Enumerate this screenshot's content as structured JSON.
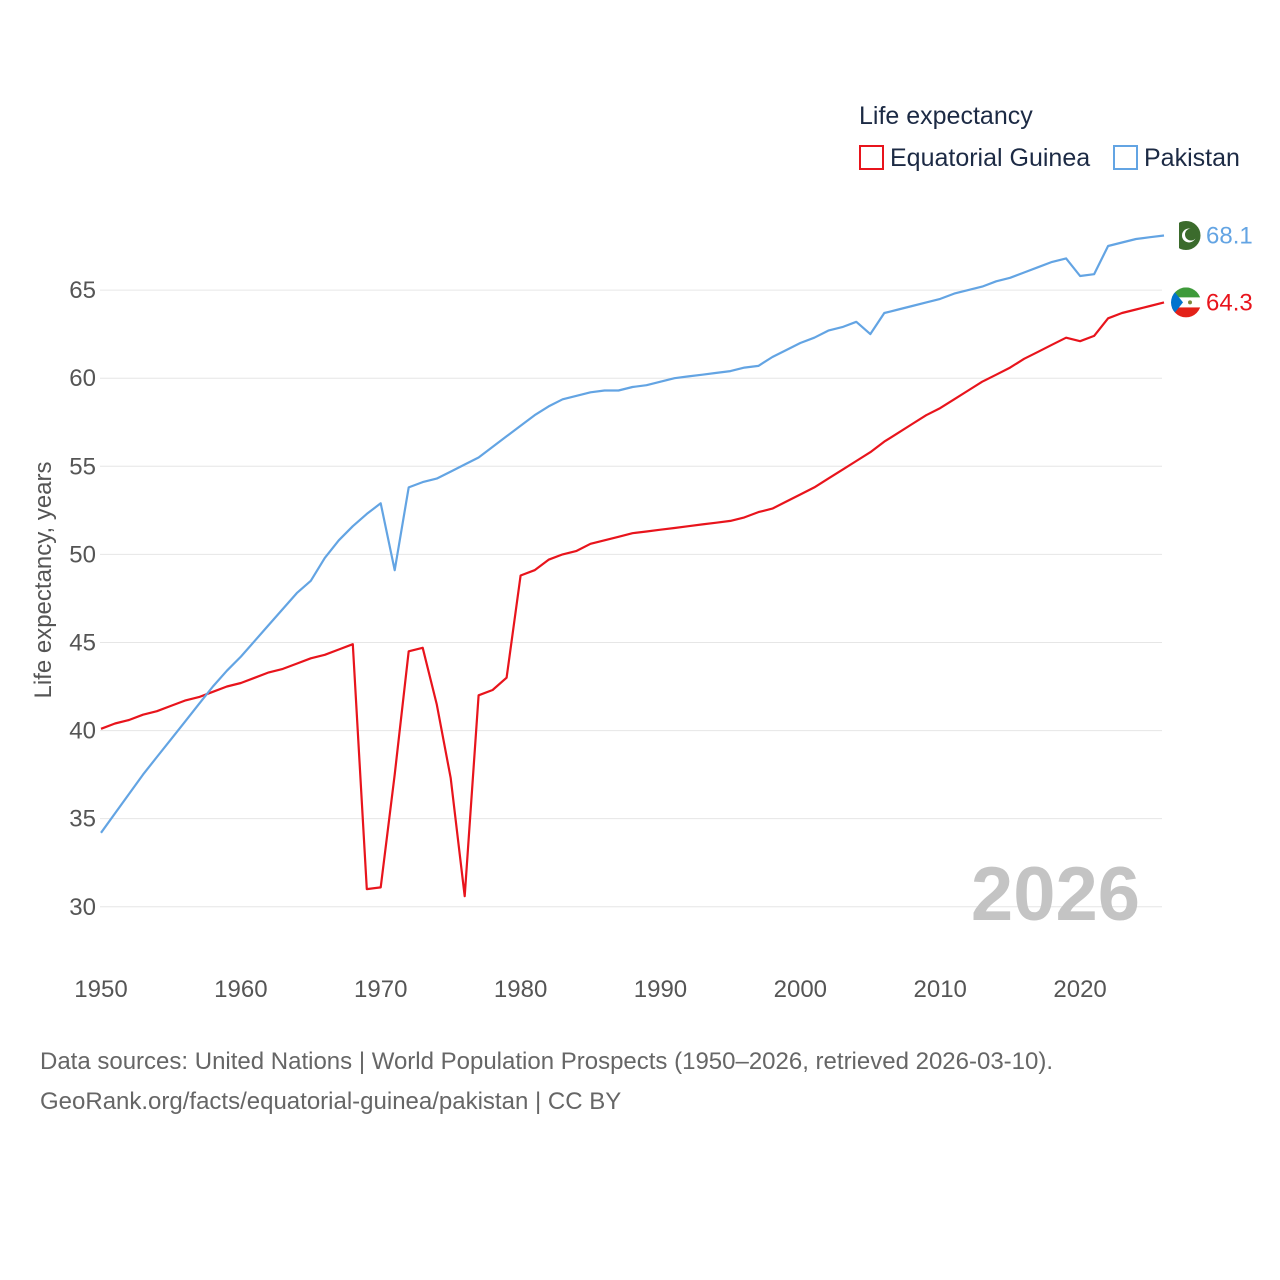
{
  "chart_data": {
    "type": "line",
    "legend_title": "Life expectancy",
    "ylabel": "Life expectancy, years",
    "xlabel": "",
    "xlim": [
      1950,
      2026
    ],
    "ylim": [
      28,
      70
    ],
    "x_ticks": [
      1950,
      1960,
      1970,
      1980,
      1990,
      2000,
      2010,
      2020
    ],
    "y_ticks": [
      30,
      35,
      40,
      45,
      50,
      55,
      60,
      65
    ],
    "year_watermark": "2026",
    "legend_placement": "top-right",
    "series": [
      {
        "name": "Equatorial Guinea",
        "color": "#e8141c",
        "end_label": "64.3",
        "points": [
          [
            1950,
            40.1
          ],
          [
            1951,
            40.4
          ],
          [
            1952,
            40.6
          ],
          [
            1953,
            40.9
          ],
          [
            1954,
            41.1
          ],
          [
            1955,
            41.4
          ],
          [
            1956,
            41.7
          ],
          [
            1957,
            41.9
          ],
          [
            1958,
            42.2
          ],
          [
            1959,
            42.5
          ],
          [
            1960,
            42.7
          ],
          [
            1961,
            43.0
          ],
          [
            1962,
            43.3
          ],
          [
            1963,
            43.5
          ],
          [
            1964,
            43.8
          ],
          [
            1965,
            44.1
          ],
          [
            1966,
            44.3
          ],
          [
            1967,
            44.6
          ],
          [
            1968,
            44.9
          ],
          [
            1969,
            31.0
          ],
          [
            1970,
            31.1
          ],
          [
            1971,
            37.5
          ],
          [
            1972,
            44.5
          ],
          [
            1973,
            44.7
          ],
          [
            1974,
            41.5
          ],
          [
            1975,
            37.3
          ],
          [
            1976,
            30.6
          ],
          [
            1977,
            42.0
          ],
          [
            1978,
            42.3
          ],
          [
            1979,
            43.0
          ],
          [
            1980,
            48.8
          ],
          [
            1981,
            49.1
          ],
          [
            1982,
            49.7
          ],
          [
            1983,
            50.0
          ],
          [
            1984,
            50.2
          ],
          [
            1985,
            50.6
          ],
          [
            1986,
            50.8
          ],
          [
            1987,
            51.0
          ],
          [
            1988,
            51.2
          ],
          [
            1989,
            51.3
          ],
          [
            1990,
            51.4
          ],
          [
            1991,
            51.5
          ],
          [
            1992,
            51.6
          ],
          [
            1993,
            51.7
          ],
          [
            1994,
            51.8
          ],
          [
            1995,
            51.9
          ],
          [
            1996,
            52.1
          ],
          [
            1997,
            52.4
          ],
          [
            1998,
            52.6
          ],
          [
            1999,
            53.0
          ],
          [
            2000,
            53.4
          ],
          [
            2001,
            53.8
          ],
          [
            2002,
            54.3
          ],
          [
            2003,
            54.8
          ],
          [
            2004,
            55.3
          ],
          [
            2005,
            55.8
          ],
          [
            2006,
            56.4
          ],
          [
            2007,
            56.9
          ],
          [
            2008,
            57.4
          ],
          [
            2009,
            57.9
          ],
          [
            2010,
            58.3
          ],
          [
            2011,
            58.8
          ],
          [
            2012,
            59.3
          ],
          [
            2013,
            59.8
          ],
          [
            2014,
            60.2
          ],
          [
            2015,
            60.6
          ],
          [
            2016,
            61.1
          ],
          [
            2017,
            61.5
          ],
          [
            2018,
            61.9
          ],
          [
            2019,
            62.3
          ],
          [
            2020,
            62.1
          ],
          [
            2021,
            62.4
          ],
          [
            2022,
            63.4
          ],
          [
            2023,
            63.7
          ],
          [
            2024,
            63.9
          ],
          [
            2025,
            64.1
          ],
          [
            2026,
            64.3
          ]
        ]
      },
      {
        "name": "Pakistan",
        "color": "#63a4e3",
        "end_label": "68.1",
        "points": [
          [
            1950,
            34.2
          ],
          [
            1951,
            35.3
          ],
          [
            1952,
            36.4
          ],
          [
            1953,
            37.5
          ],
          [
            1954,
            38.5
          ],
          [
            1955,
            39.5
          ],
          [
            1956,
            40.5
          ],
          [
            1957,
            41.5
          ],
          [
            1958,
            42.5
          ],
          [
            1959,
            43.4
          ],
          [
            1960,
            44.2
          ],
          [
            1961,
            45.1
          ],
          [
            1962,
            46.0
          ],
          [
            1963,
            46.9
          ],
          [
            1964,
            47.8
          ],
          [
            1965,
            48.5
          ],
          [
            1966,
            49.8
          ],
          [
            1967,
            50.8
          ],
          [
            1968,
            51.6
          ],
          [
            1969,
            52.3
          ],
          [
            1970,
            52.9
          ],
          [
            1971,
            49.1
          ],
          [
            1972,
            53.8
          ],
          [
            1973,
            54.1
          ],
          [
            1974,
            54.3
          ],
          [
            1975,
            54.7
          ],
          [
            1976,
            55.1
          ],
          [
            1977,
            55.5
          ],
          [
            1978,
            56.1
          ],
          [
            1979,
            56.7
          ],
          [
            1980,
            57.3
          ],
          [
            1981,
            57.9
          ],
          [
            1982,
            58.4
          ],
          [
            1983,
            58.8
          ],
          [
            1984,
            59.0
          ],
          [
            1985,
            59.2
          ],
          [
            1986,
            59.3
          ],
          [
            1987,
            59.3
          ],
          [
            1988,
            59.5
          ],
          [
            1989,
            59.6
          ],
          [
            1990,
            59.8
          ],
          [
            1991,
            60.0
          ],
          [
            1992,
            60.1
          ],
          [
            1993,
            60.2
          ],
          [
            1994,
            60.3
          ],
          [
            1995,
            60.4
          ],
          [
            1996,
            60.6
          ],
          [
            1997,
            60.7
          ],
          [
            1998,
            61.2
          ],
          [
            1999,
            61.6
          ],
          [
            2000,
            62.0
          ],
          [
            2001,
            62.3
          ],
          [
            2002,
            62.7
          ],
          [
            2003,
            62.9
          ],
          [
            2004,
            63.2
          ],
          [
            2005,
            62.5
          ],
          [
            2006,
            63.7
          ],
          [
            2007,
            63.9
          ],
          [
            2008,
            64.1
          ],
          [
            2009,
            64.3
          ],
          [
            2010,
            64.5
          ],
          [
            2011,
            64.8
          ],
          [
            2012,
            65.0
          ],
          [
            2013,
            65.2
          ],
          [
            2014,
            65.5
          ],
          [
            2015,
            65.7
          ],
          [
            2016,
            66.0
          ],
          [
            2017,
            66.3
          ],
          [
            2018,
            66.6
          ],
          [
            2019,
            66.8
          ],
          [
            2020,
            65.8
          ],
          [
            2021,
            65.9
          ],
          [
            2022,
            67.5
          ],
          [
            2023,
            67.7
          ],
          [
            2024,
            67.9
          ],
          [
            2025,
            68.0
          ],
          [
            2026,
            68.1
          ]
        ]
      }
    ]
  },
  "footer": {
    "source_line": "Data sources: United Nations | World Population Prospects (1950–2026, retrieved 2026-03-10).",
    "url_line": "GeoRank.org/facts/equatorial-guinea/pakistan | CC BY"
  }
}
